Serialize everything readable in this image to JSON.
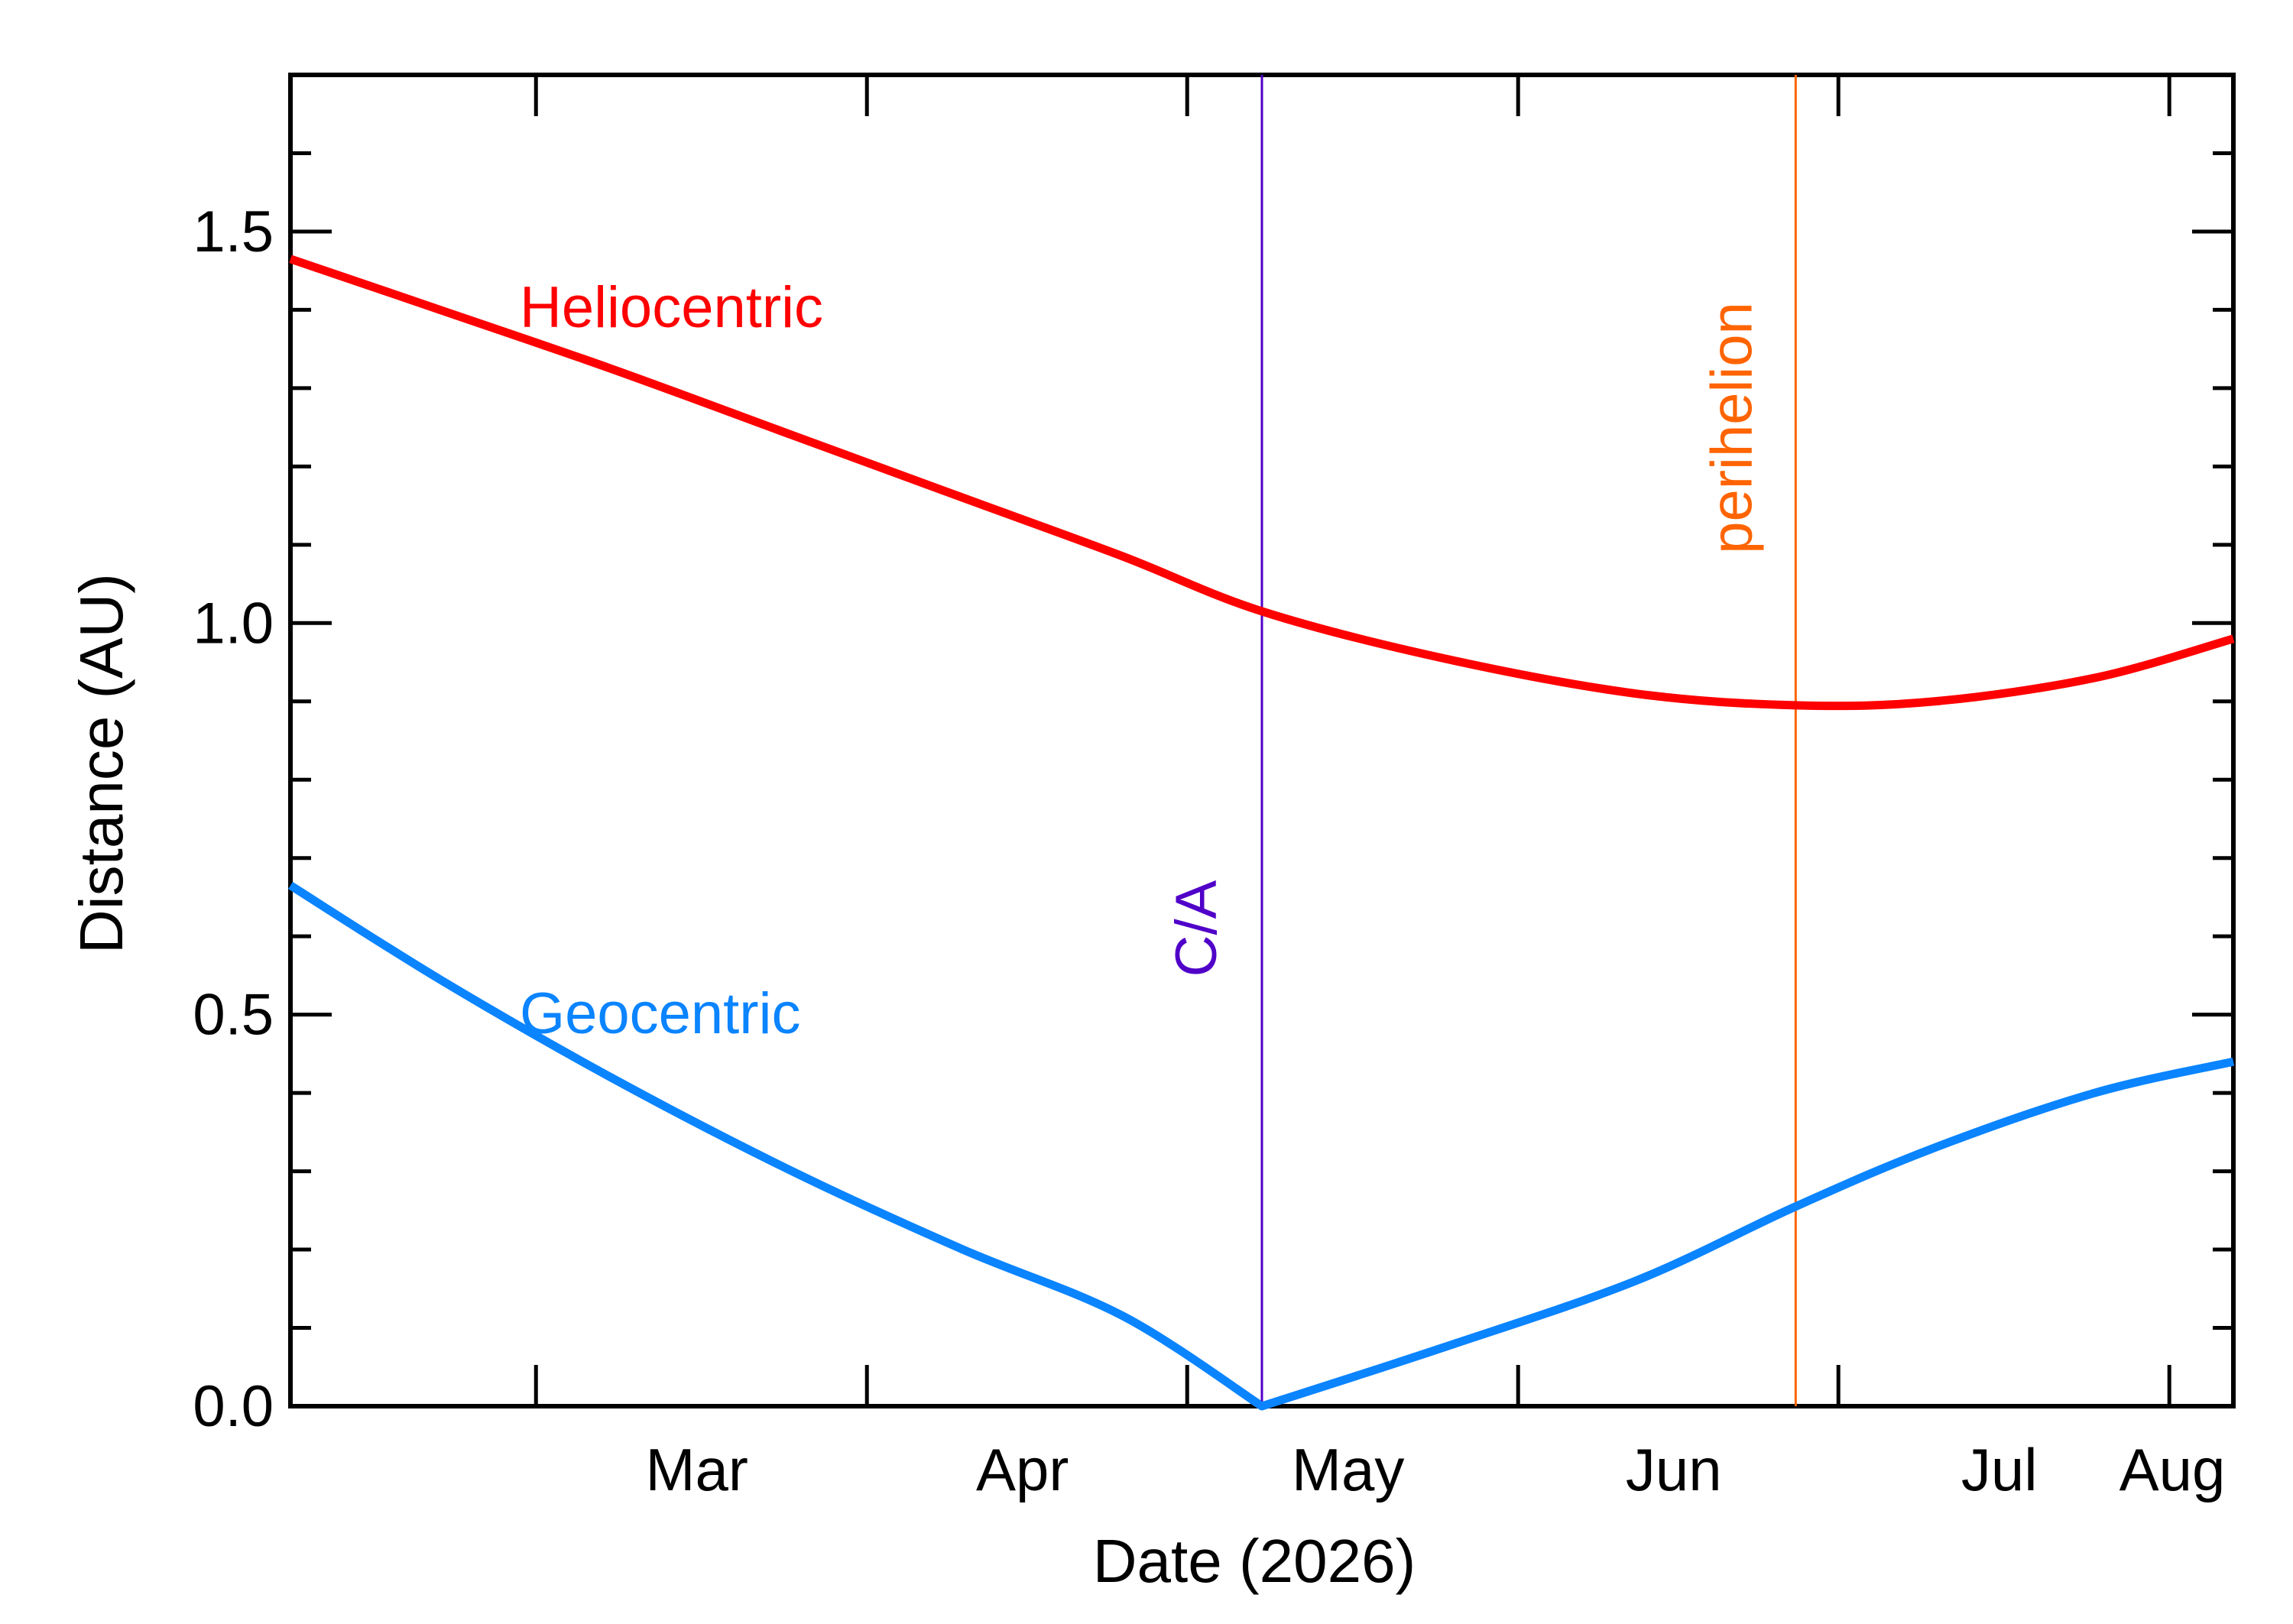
{
  "chart_data": {
    "type": "line",
    "title": "",
    "xlabel": "Date (2026)",
    "ylabel": "Distance (AU)",
    "x_axis": {
      "type": "date",
      "range": [
        "2026-02-06",
        "2026-08-07"
      ],
      "tick_labels": [
        "Mar",
        "Apr",
        "May",
        "Jun",
        "Jul",
        "Aug"
      ],
      "month_starts": [
        "2026-02-01",
        "2026-03-01",
        "2026-04-01",
        "2026-05-01",
        "2026-06-01",
        "2026-07-01",
        "2026-08-01"
      ]
    },
    "y_axis": {
      "range": [
        0,
        1.7
      ],
      "ticks": [
        0.0,
        0.5,
        1.0,
        1.5
      ],
      "tick_labels": [
        "0.0",
        "0.5",
        "1.0",
        "1.5"
      ],
      "minor_step": 0.1
    },
    "grid": false,
    "legend": "inline labels",
    "series": [
      {
        "name": "Heliocentric",
        "color": "#ff0000",
        "points": [
          [
            "2026-02-06",
            1.465
          ],
          [
            "2026-02-20",
            1.4
          ],
          [
            "2026-03-08",
            1.325
          ],
          [
            "2026-03-25",
            1.24
          ],
          [
            "2026-04-10",
            1.16
          ],
          [
            "2026-04-25",
            1.085
          ],
          [
            "2026-05-08",
            1.015
          ],
          [
            "2026-05-25",
            0.955
          ],
          [
            "2026-06-12",
            0.91
          ],
          [
            "2026-06-27",
            0.895
          ],
          [
            "2026-07-10",
            0.9
          ],
          [
            "2026-07-25",
            0.93
          ],
          [
            "2026-08-07",
            0.98
          ]
        ]
      },
      {
        "name": "Geocentric",
        "color": "#0a84ff",
        "points": [
          [
            "2026-02-06",
            0.665
          ],
          [
            "2026-02-20",
            0.545
          ],
          [
            "2026-03-08",
            0.42
          ],
          [
            "2026-03-25",
            0.3
          ],
          [
            "2026-04-10",
            0.2
          ],
          [
            "2026-04-25",
            0.115
          ],
          [
            "2026-05-08",
            0.0
          ],
          [
            "2026-05-25",
            0.075
          ],
          [
            "2026-06-12",
            0.16
          ],
          [
            "2026-06-27",
            0.255
          ],
          [
            "2026-07-10",
            0.33
          ],
          [
            "2026-07-25",
            0.4
          ],
          [
            "2026-08-07",
            0.44
          ]
        ]
      }
    ],
    "annotations": [
      {
        "label": "C/A",
        "date": "2026-05-08",
        "color": "#5000c8"
      },
      {
        "label": "perihelion",
        "date": "2026-06-27",
        "color": "#ff6400"
      }
    ]
  }
}
